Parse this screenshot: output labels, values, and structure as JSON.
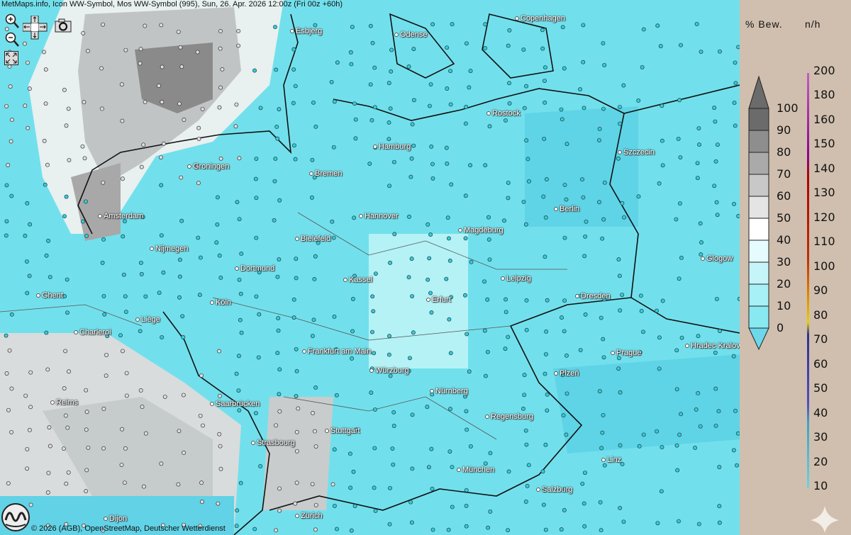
{
  "title": "MetMaps.info, Icon WW-Symbol, Mos WW-Symbol (995), Sun, 26. Apr. 2026 12:00z (Fri 00z +60h)",
  "controls": {
    "zoom_in": "zoom-in-icon",
    "zoom_out": "zoom-out-icon",
    "pan": "pan-arrows-icon",
    "screenshot": "camera-icon",
    "fullscreen": "fullscreen-icon"
  },
  "cities": [
    "Esbjerg",
    "Odense",
    "Copenhagen",
    "Rostock",
    "Hamburg",
    "Szczecin",
    "Groningen",
    "Bremen",
    "Amsterdam",
    "Berlin",
    "Hannover",
    "Magdeburg",
    "Bielefeld",
    "Nijmegen",
    "Glogow",
    "Dortmund",
    "Kassel",
    "Leipzig",
    "Ghent",
    "Dresden",
    "Erfurt",
    "Köln",
    "Liège",
    "Charleroi",
    "Hradec Kralove",
    "Frankfurt am Main",
    "Prague",
    "Würzburg",
    "Plzeň",
    "Nürnberg",
    "Reims",
    "Saarbrücken",
    "Regensburg",
    "Stuttgart",
    "Strasbourg",
    "Linz",
    "München",
    "Salzburg",
    "Dijon",
    "Zürich"
  ],
  "credit": "© 2026 (AGB), OpenStreetMap, Deutscher Wetterdienst",
  "logo_text": "METMAPS",
  "legend": {
    "cloud_title": "% Bew.",
    "cloud_ticks": [
      "100",
      "90",
      "80",
      "70",
      "60",
      "50",
      "40",
      "30",
      "20",
      "10",
      "0"
    ],
    "cloud_colors": [
      "#6b6b6b",
      "#8e8e8e",
      "#aaaaaa",
      "#c8c8c8",
      "#e4e4e4",
      "#ffffff",
      "#e6fbfd",
      "#c6f5f9",
      "#a6f0f6",
      "#88e9f1",
      "#6cd8ea"
    ],
    "wind_title": "n/h",
    "wind_ticks": [
      "200",
      "180",
      "160",
      "150",
      "140",
      "130",
      "120",
      "110",
      "100",
      "90",
      "80",
      "70",
      "60",
      "50",
      "40",
      "30",
      "20",
      "10"
    ]
  }
}
